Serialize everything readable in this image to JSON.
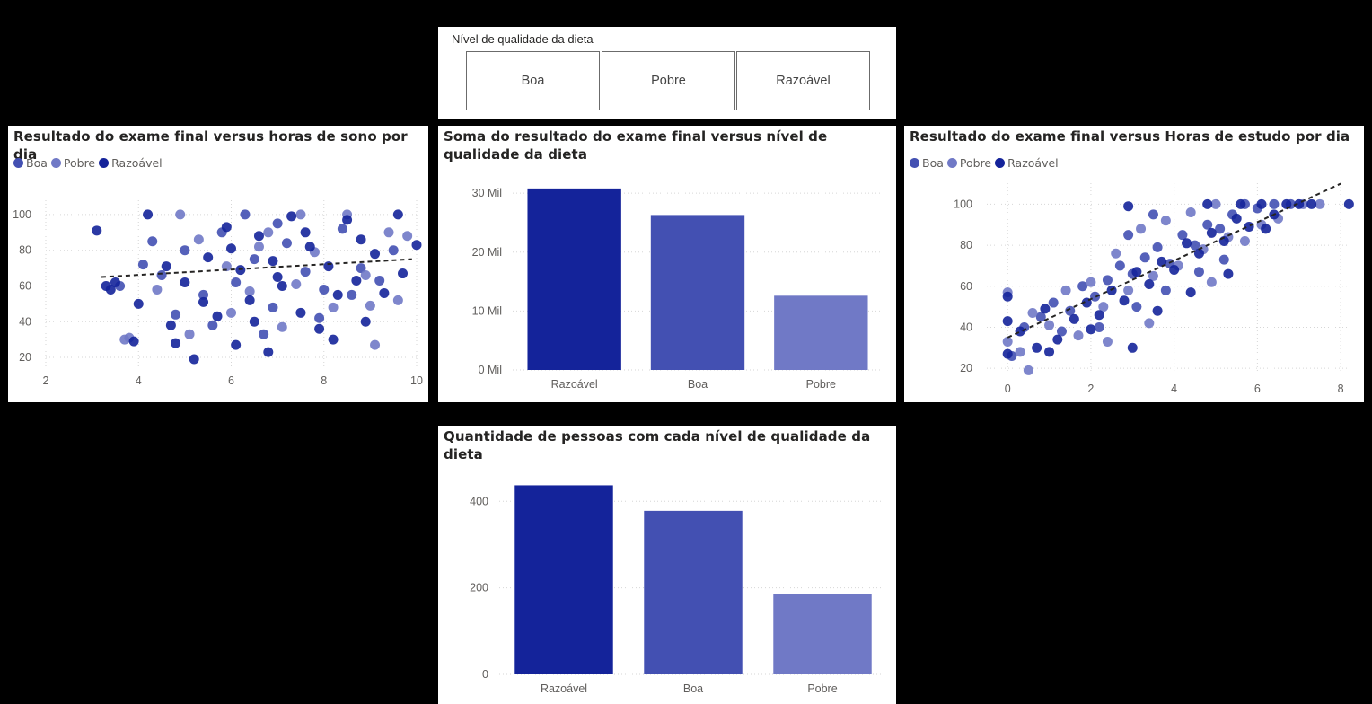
{
  "slicer": {
    "header": "Nível de qualidade da dieta",
    "options": [
      "Boa",
      "Pobre",
      "Razoável"
    ]
  },
  "colors": {
    "Boa": "#4350b2",
    "Pobre": "#7079c6",
    "Razoável": "#14239a"
  },
  "legend_items": [
    "Boa",
    "Pobre",
    "Razoável"
  ],
  "chart_data": [
    {
      "id": "sleep",
      "type": "scatter",
      "title": "Resultado do exame final versus horas de sono por dia",
      "xlim": [
        2,
        10
      ],
      "ylim": [
        15,
        108
      ],
      "xticks": [
        "2",
        "4",
        "6",
        "8",
        "10"
      ],
      "yticks": [
        "20",
        "40",
        "60",
        "80",
        "100"
      ],
      "trendline": [
        [
          3.2,
          65
        ],
        [
          9.9,
          75
        ]
      ],
      "series": [
        {
          "name": "Boa",
          "points": [
            [
              4.1,
              72
            ],
            [
              4.5,
              66
            ],
            [
              5.0,
              80
            ],
            [
              5.4,
              55
            ],
            [
              5.8,
              90
            ],
            [
              6.1,
              62
            ],
            [
              6.5,
              75
            ],
            [
              6.9,
              48
            ],
            [
              7.2,
              84
            ],
            [
              7.6,
              68
            ],
            [
              8.0,
              58
            ],
            [
              8.4,
              92
            ],
            [
              8.8,
              70
            ],
            [
              9.2,
              63
            ],
            [
              4.8,
              44
            ],
            [
              5.6,
              38
            ],
            [
              6.3,
              100
            ],
            [
              7.0,
              95
            ],
            [
              7.9,
              42
            ],
            [
              9.5,
              80
            ],
            [
              3.6,
              60
            ],
            [
              4.3,
              85
            ],
            [
              6.7,
              33
            ],
            [
              8.6,
              55
            ]
          ]
        },
        {
          "name": "Pobre",
          "points": [
            [
              3.7,
              30
            ],
            [
              4.9,
              100
            ],
            [
              5.3,
              86
            ],
            [
              5.9,
              71
            ],
            [
              6.4,
              57
            ],
            [
              6.8,
              90
            ],
            [
              7.4,
              61
            ],
            [
              7.8,
              79
            ],
            [
              8.2,
              48
            ],
            [
              8.9,
              66
            ],
            [
              9.1,
              27
            ],
            [
              9.4,
              90
            ],
            [
              9.8,
              88
            ],
            [
              5.1,
              33
            ],
            [
              6.0,
              45
            ],
            [
              7.1,
              37
            ],
            [
              8.5,
              100
            ],
            [
              9.6,
              52
            ],
            [
              4.4,
              58
            ],
            [
              6.6,
              82
            ],
            [
              3.8,
              31
            ],
            [
              7.5,
              100
            ],
            [
              9.0,
              49
            ]
          ]
        },
        {
          "name": "Razoável",
          "points": [
            [
              3.1,
              91
            ],
            [
              3.3,
              60
            ],
            [
              3.5,
              62
            ],
            [
              3.9,
              29
            ],
            [
              4.0,
              50
            ],
            [
              4.2,
              100
            ],
            [
              4.6,
              71
            ],
            [
              4.7,
              38
            ],
            [
              5.0,
              62
            ],
            [
              5.2,
              19
            ],
            [
              5.5,
              76
            ],
            [
              5.7,
              43
            ],
            [
              5.9,
              93
            ],
            [
              6.1,
              27
            ],
            [
              6.2,
              69
            ],
            [
              6.4,
              52
            ],
            [
              6.6,
              88
            ],
            [
              6.8,
              23
            ],
            [
              6.9,
              74
            ],
            [
              7.1,
              60
            ],
            [
              7.3,
              99
            ],
            [
              7.5,
              45
            ],
            [
              7.7,
              82
            ],
            [
              7.9,
              36
            ],
            [
              8.1,
              71
            ],
            [
              8.3,
              55
            ],
            [
              8.5,
              97
            ],
            [
              8.7,
              63
            ],
            [
              8.9,
              40
            ],
            [
              9.1,
              78
            ],
            [
              9.3,
              56
            ],
            [
              9.6,
              100
            ],
            [
              10.0,
              83
            ],
            [
              3.4,
              58
            ],
            [
              4.8,
              28
            ],
            [
              5.4,
              51
            ],
            [
              6.0,
              81
            ],
            [
              6.5,
              40
            ],
            [
              7.0,
              65
            ],
            [
              7.6,
              90
            ],
            [
              8.2,
              30
            ],
            [
              8.8,
              86
            ],
            [
              9.7,
              67
            ]
          ]
        }
      ]
    },
    {
      "id": "sum",
      "type": "bar",
      "title": "Soma do resultado do exame final versus nível de qualidade da dieta",
      "categories": [
        "Razoável",
        "Boa",
        "Pobre"
      ],
      "values": [
        30800,
        26300,
        12600
      ],
      "ylim": [
        0,
        32000
      ],
      "yticks": [
        {
          "v": 0,
          "label": "0 Mil"
        },
        {
          "v": 10000,
          "label": "10 Mil"
        },
        {
          "v": 20000,
          "label": "20 Mil"
        },
        {
          "v": 30000,
          "label": "30 Mil"
        }
      ]
    },
    {
      "id": "study",
      "type": "scatter",
      "title": "Resultado do exame final versus Horas de estudo por dia",
      "xlim": [
        -0.5,
        8.3
      ],
      "ylim": [
        17,
        112
      ],
      "xticks": [
        "0",
        "2",
        "4",
        "6",
        "8"
      ],
      "yticks": [
        "20",
        "40",
        "60",
        "80",
        "100"
      ],
      "trendline": [
        [
          0,
          35
        ],
        [
          8,
          110
        ]
      ],
      "series": [
        {
          "name": "Boa",
          "points": [
            [
              0.1,
              26
            ],
            [
              0.4,
              40
            ],
            [
              0.8,
              45
            ],
            [
              1.1,
              52
            ],
            [
              1.5,
              48
            ],
            [
              1.8,
              60
            ],
            [
              2.1,
              55
            ],
            [
              2.4,
              63
            ],
            [
              2.7,
              70
            ],
            [
              3.0,
              66
            ],
            [
              3.3,
              74
            ],
            [
              3.6,
              79
            ],
            [
              3.9,
              71
            ],
            [
              4.2,
              85
            ],
            [
              4.5,
              80
            ],
            [
              4.8,
              90
            ],
            [
              5.1,
              88
            ],
            [
              5.4,
              95
            ],
            [
              5.7,
              100
            ],
            [
              6.0,
              98
            ],
            [
              6.4,
              100
            ],
            [
              6.8,
              100
            ],
            [
              2.2,
              40
            ],
            [
              3.1,
              50
            ],
            [
              3.8,
              58
            ],
            [
              4.6,
              67
            ],
            [
              5.2,
              73
            ],
            [
              1.3,
              38
            ],
            [
              2.9,
              85
            ],
            [
              3.5,
              95
            ]
          ]
        },
        {
          "name": "Pobre",
          "points": [
            [
              0.0,
              33
            ],
            [
              0.3,
              28
            ],
            [
              0.6,
              47
            ],
            [
              1.0,
              41
            ],
            [
              1.4,
              58
            ],
            [
              1.7,
              36
            ],
            [
              2.0,
              62
            ],
            [
              2.3,
              50
            ],
            [
              2.6,
              76
            ],
            [
              2.9,
              58
            ],
            [
              3.2,
              88
            ],
            [
              3.5,
              65
            ],
            [
              3.8,
              92
            ],
            [
              4.1,
              70
            ],
            [
              4.4,
              96
            ],
            [
              4.7,
              78
            ],
            [
              5.0,
              100
            ],
            [
              5.3,
              84
            ],
            [
              5.7,
              82
            ],
            [
              6.1,
              90
            ],
            [
              6.5,
              93
            ],
            [
              7.1,
              100
            ],
            [
              7.5,
              100
            ],
            [
              0.0,
              57
            ],
            [
              0.5,
              19
            ],
            [
              2.4,
              33
            ],
            [
              3.4,
              42
            ],
            [
              4.9,
              62
            ]
          ]
        },
        {
          "name": "Razoável",
          "points": [
            [
              0.0,
              27
            ],
            [
              0.0,
              43
            ],
            [
              0.0,
              55
            ],
            [
              0.3,
              38
            ],
            [
              0.7,
              30
            ],
            [
              0.9,
              49
            ],
            [
              1.2,
              34
            ],
            [
              1.6,
              44
            ],
            [
              1.9,
              52
            ],
            [
              2.2,
              46
            ],
            [
              2.5,
              58
            ],
            [
              2.8,
              53
            ],
            [
              3.1,
              67
            ],
            [
              3.4,
              61
            ],
            [
              3.7,
              72
            ],
            [
              4.0,
              68
            ],
            [
              4.3,
              81
            ],
            [
              4.6,
              76
            ],
            [
              4.9,
              86
            ],
            [
              5.2,
              82
            ],
            [
              5.5,
              93
            ],
            [
              5.8,
              89
            ],
            [
              6.1,
              100
            ],
            [
              6.4,
              95
            ],
            [
              6.7,
              100
            ],
            [
              7.0,
              100
            ],
            [
              7.3,
              100
            ],
            [
              8.2,
              100
            ],
            [
              1.0,
              28
            ],
            [
              2.0,
              39
            ],
            [
              2.9,
              99
            ],
            [
              3.6,
              48
            ],
            [
              4.4,
              57
            ],
            [
              5.3,
              66
            ],
            [
              6.2,
              88
            ],
            [
              3.0,
              30
            ],
            [
              4.8,
              100
            ],
            [
              5.6,
              100
            ]
          ]
        }
      ]
    },
    {
      "id": "count",
      "type": "bar",
      "title": "Quantidade de pessoas com cada nível de qualidade da dieta",
      "categories": [
        "Razoável",
        "Boa",
        "Pobre"
      ],
      "values": [
        437,
        378,
        185
      ],
      "ylim": [
        0,
        440
      ],
      "yticks": [
        {
          "v": 0,
          "label": "0"
        },
        {
          "v": 200,
          "label": "200"
        },
        {
          "v": 400,
          "label": "400"
        }
      ]
    }
  ]
}
